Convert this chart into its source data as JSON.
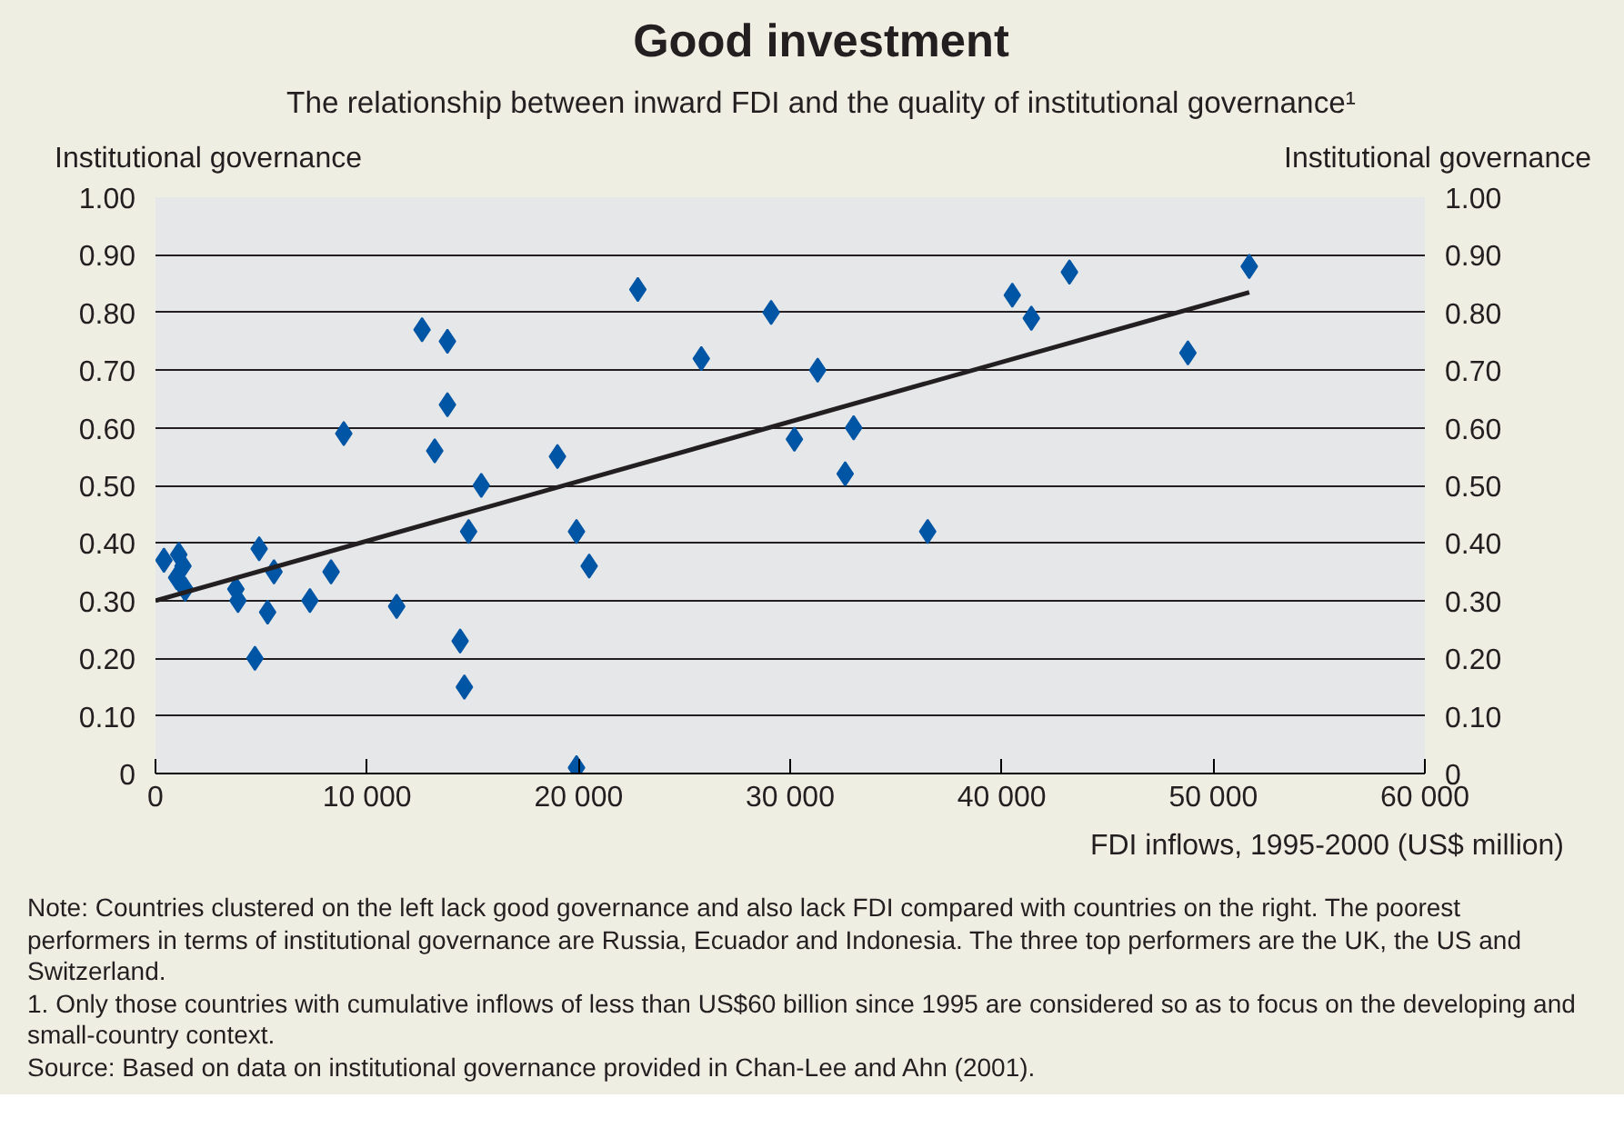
{
  "chart_data": {
    "type": "scatter",
    "title": "Good investment",
    "subtitle": "The relationship between inward FDI and the quality of institutional governance¹",
    "xlabel": "FDI inflows, 1995-2000 (US$ million)",
    "ylabel": "Institutional governance",
    "y2label": "Institutional governance",
    "xlim": [
      0,
      60000
    ],
    "xticks": [
      0,
      {
        "value": 10000,
        "label": "10 000"
      },
      {
        "value": 20000,
        "label": "20 000"
      },
      {
        "value": 30000,
        "label": "30 000"
      },
      {
        "value": 40000,
        "label": "40 000"
      },
      {
        "value": 50000,
        "label": "50 000"
      },
      {
        "value": 60000,
        "label": "60 000"
      }
    ],
    "ylim": [
      0,
      1
    ],
    "yticks": [
      0,
      {
        "value": 0.1,
        "label": "0.10"
      },
      {
        "value": 0.2,
        "label": "0.20"
      },
      {
        "value": 0.3,
        "label": "0.30"
      },
      {
        "value": 0.4,
        "label": "0.40"
      },
      {
        "value": 0.5,
        "label": "0.50"
      },
      {
        "value": 0.6,
        "label": "0.60"
      },
      {
        "value": 0.7,
        "label": "0.70"
      },
      {
        "value": 0.8,
        "label": "0.80"
      },
      {
        "value": 0.9,
        "label": "0.90"
      },
      {
        "value": 1,
        "label": "1.00"
      }
    ],
    "y2lim": [
      0,
      1
    ],
    "y2ticks": [
      0,
      {
        "value": 0.1,
        "label": "0.10"
      },
      {
        "value": 0.2,
        "label": "0.20"
      },
      {
        "value": 0.3,
        "label": "0.30"
      },
      {
        "value": 0.4,
        "label": "0.40"
      },
      {
        "value": 0.5,
        "label": "0.50"
      },
      {
        "value": 0.6,
        "label": "0.60"
      },
      {
        "value": 0.7,
        "label": "0.70"
      },
      {
        "value": 0.8,
        "label": "0.80"
      },
      {
        "value": 0.9,
        "label": "0.90"
      },
      {
        "value": 1,
        "label": "1.00"
      }
    ],
    "grid": "y",
    "marker": "diamond",
    "series": [
      {
        "color": "#0055a5",
        "x": [
          400,
          1100,
          1300,
          1000,
          1400,
          3800,
          3900,
          4900,
          5600,
          5300,
          4700,
          7300,
          8300,
          8900,
          11400,
          12600,
          13800,
          13800,
          13200,
          15400,
          14800,
          14400,
          14600,
          19000,
          19900,
          20500,
          19900,
          22800,
          29100,
          25800,
          31300,
          30200,
          33000,
          32600,
          36500,
          40500,
          41400,
          43200,
          48800,
          51700
        ],
        "values": [
          0.37,
          0.38,
          0.36,
          0.34,
          0.32,
          0.32,
          0.3,
          0.39,
          0.35,
          0.28,
          0.2,
          0.3,
          0.35,
          0.59,
          0.29,
          0.77,
          0.75,
          0.64,
          0.56,
          0.5,
          0.42,
          0.23,
          0.15,
          0.55,
          0.42,
          0.36,
          0.01,
          0.84,
          0.8,
          0.72,
          0.7,
          0.58,
          0.6,
          0.52,
          0.42,
          0.83,
          0.79,
          0.87,
          0.73,
          0.88
        ]
      },
      {
        "type": "line",
        "color": "#231f20",
        "marker": "none",
        "line_style": "solid",
        "x": [
          0,
          51700
        ],
        "values": [
          0.3,
          0.835
        ]
      }
    ],
    "annotations": [
      "Note: Countries clustered on the left lack good governance and also lack FDI compared with countries on the right. The poorest performers in terms of institutional governance are Russia, Ecuador and Indonesia. The three top performers are the UK, the US and Switzerland.",
      "1. Only those countries with cumulative inflows of less than US$60 billion since 1995 are considered so as to focus on the developing and small-country context.",
      "Source: Based on data on institutional governance provided in Chan-Lee and Ahn (2001)."
    ]
  }
}
